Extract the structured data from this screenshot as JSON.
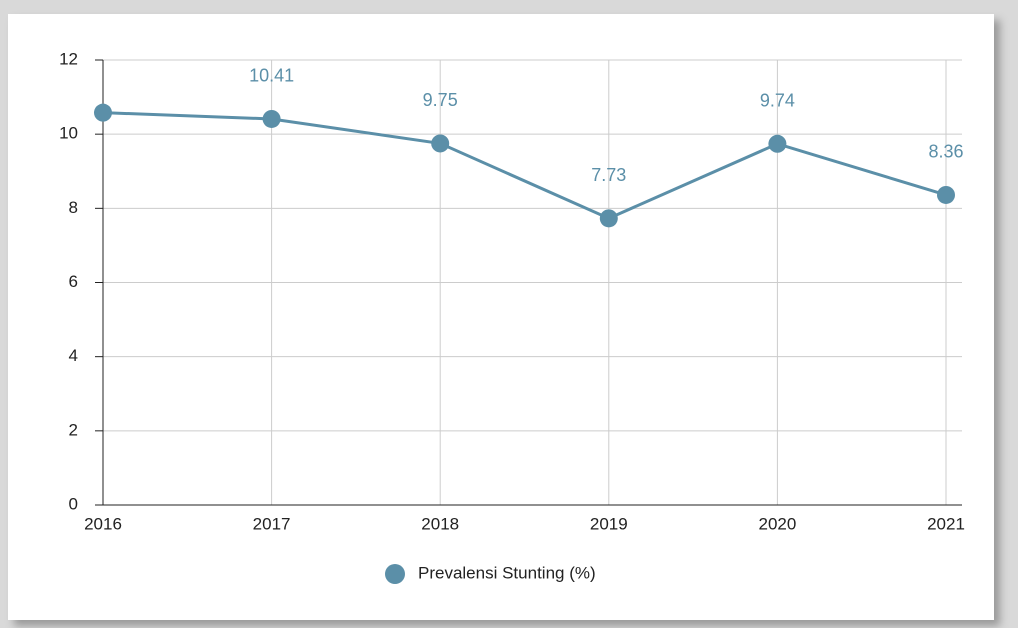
{
  "chart_data": {
    "type": "line",
    "categories": [
      "2016",
      "2017",
      "2018",
      "2019",
      "2020",
      "2021"
    ],
    "series": [
      {
        "name": "Prevalensi Stunting (%)",
        "color": "#5b8fa8",
        "values": [
          10.58,
          10.41,
          9.75,
          7.73,
          9.74,
          8.36
        ],
        "value_labels": [
          null,
          "10.41",
          "9.75",
          "7.73",
          "9.74",
          "8.36"
        ]
      }
    ],
    "ylim": [
      0,
      12
    ],
    "yticks": [
      0,
      2,
      4,
      6,
      8,
      10,
      12
    ],
    "grid": true,
    "legend": "bottom"
  }
}
